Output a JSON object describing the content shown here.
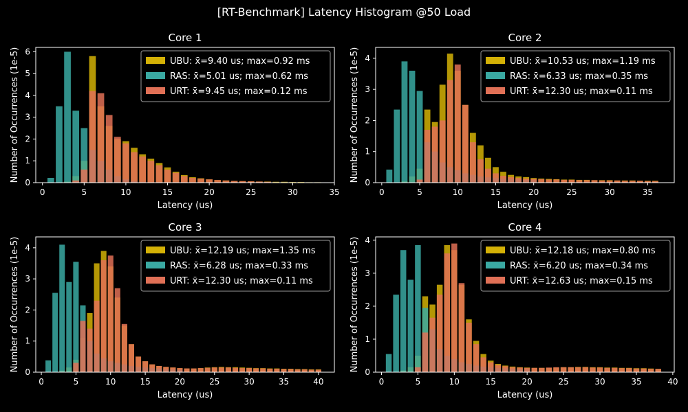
{
  "figure": {
    "title": "[RT-Benchmark] Latency Histogram @50 Load",
    "background": "#000000",
    "foreground": "#ffffff"
  },
  "chart_data": [
    {
      "type": "bar",
      "title": "Core 1",
      "xlabel": "Latency (us)",
      "ylabel": "Number of Occurrences (1e-5)",
      "xlim": [
        -0.8,
        35
      ],
      "ylim": [
        0,
        6.2
      ],
      "xticks": [
        0,
        5,
        10,
        15,
        20,
        25,
        30,
        35
      ],
      "yticks": [
        0,
        1,
        2,
        3,
        4,
        5,
        6
      ],
      "legend_position": "upper-right",
      "grid": false,
      "bar_width": 0.8,
      "series": [
        {
          "name": "UBU: x̄=9.40 us; max=0.92 ms",
          "color": "#d4b106",
          "x": [
            3,
            4,
            5,
            6,
            7,
            8,
            9,
            10,
            11,
            12,
            13,
            14,
            15,
            16,
            17,
            18,
            19,
            20,
            21,
            22,
            23,
            24,
            25,
            26,
            27,
            28,
            29,
            30,
            31,
            32,
            33
          ],
          "values": [
            0.05,
            0.3,
            1.0,
            5.8,
            3.5,
            2.6,
            2.0,
            1.9,
            1.6,
            1.3,
            1.1,
            0.9,
            0.7,
            0.5,
            0.35,
            0.25,
            0.2,
            0.15,
            0.12,
            0.1,
            0.08,
            0.07,
            0.06,
            0.05,
            0.05,
            0.04,
            0.04,
            0.03,
            0.03,
            0.02,
            0.02
          ]
        },
        {
          "name": "RAS: x̄=5.01 us; max=0.62 ms",
          "color": "#3aa9a2",
          "x": [
            1,
            2,
            3,
            4,
            5,
            6,
            7,
            8,
            9,
            10,
            11,
            12
          ],
          "values": [
            0.22,
            3.5,
            6.0,
            3.3,
            2.5,
            1.5,
            1.0,
            0.6,
            0.3,
            0.15,
            0.08,
            0.04
          ]
        },
        {
          "name": "URT: x̄=9.45 us; max=0.12 ms",
          "color": "#e07056",
          "x": [
            4,
            5,
            6,
            7,
            8,
            9,
            10,
            11,
            12,
            13,
            14,
            15,
            16,
            17,
            18,
            19,
            20,
            21,
            22,
            23,
            24,
            25,
            26,
            27
          ],
          "values": [
            0.1,
            0.6,
            4.2,
            4.1,
            3.1,
            2.1,
            1.8,
            1.4,
            1.2,
            1.0,
            0.8,
            0.6,
            0.45,
            0.3,
            0.22,
            0.18,
            0.15,
            0.12,
            0.1,
            0.08,
            0.07,
            0.06,
            0.05,
            0.04
          ]
        }
      ]
    },
    {
      "type": "bar",
      "title": "Core 2",
      "xlabel": "Latency (us)",
      "ylabel": "Number of Occurrences (1e-5)",
      "xlim": [
        -0.8,
        38.5
      ],
      "ylim": [
        0,
        4.35
      ],
      "xticks": [
        0,
        5,
        10,
        15,
        20,
        25,
        30,
        35
      ],
      "yticks": [
        0,
        1,
        2,
        3,
        4
      ],
      "legend_position": "upper-right",
      "grid": false,
      "bar_width": 0.8,
      "series": [
        {
          "name": "UBU: x̄=10.53 us; max=1.19 ms",
          "color": "#d4b106",
          "x": [
            3,
            4,
            5,
            6,
            7,
            8,
            9,
            10,
            11,
            12,
            13,
            14,
            15,
            16,
            17,
            18,
            19,
            20,
            21,
            22,
            23,
            24,
            25,
            26,
            27,
            28,
            29,
            30,
            31,
            32,
            33,
            34,
            35,
            36
          ],
          "values": [
            0.05,
            0.2,
            0.45,
            2.35,
            1.95,
            3.15,
            4.15,
            3.6,
            2.5,
            1.6,
            1.2,
            0.8,
            0.5,
            0.35,
            0.25,
            0.2,
            0.18,
            0.15,
            0.13,
            0.12,
            0.11,
            0.1,
            0.1,
            0.09,
            0.09,
            0.08,
            0.08,
            0.08,
            0.07,
            0.07,
            0.07,
            0.06,
            0.06,
            0.06
          ]
        },
        {
          "name": "RAS: x̄=6.33 us; max=0.35 ms",
          "color": "#3aa9a2",
          "x": [
            1,
            2,
            3,
            4,
            5,
            6,
            7,
            8,
            9,
            10,
            11,
            12,
            13,
            14,
            15,
            16,
            17,
            18,
            19,
            20
          ],
          "values": [
            0.42,
            2.35,
            3.9,
            3.6,
            2.95,
            1.3,
            1.0,
            0.65,
            0.5,
            0.4,
            0.3,
            0.25,
            0.2,
            0.17,
            0.15,
            0.13,
            0.12,
            0.1,
            0.09,
            0.08
          ]
        },
        {
          "name": "URT: x̄=12.30 us; max=0.11 ms",
          "color": "#e07056",
          "x": [
            5,
            6,
            7,
            8,
            9,
            10,
            11,
            12,
            13,
            14,
            15,
            16,
            17,
            18,
            19,
            20,
            21,
            22,
            23,
            24,
            25,
            26,
            27,
            28,
            29,
            30,
            31,
            32,
            33,
            34,
            35,
            36
          ],
          "values": [
            0.1,
            1.7,
            1.8,
            2.0,
            3.3,
            3.8,
            2.5,
            1.3,
            0.75,
            0.45,
            0.3,
            0.22,
            0.18,
            0.15,
            0.13,
            0.12,
            0.11,
            0.1,
            0.1,
            0.09,
            0.09,
            0.08,
            0.08,
            0.08,
            0.07,
            0.07,
            0.07,
            0.06,
            0.06,
            0.06,
            0.05,
            0.05
          ]
        }
      ]
    },
    {
      "type": "bar",
      "title": "Core 3",
      "xlabel": "Latency (us)",
      "ylabel": "Number of Occurrences (1e-5)",
      "xlim": [
        -0.8,
        42.3
      ],
      "ylim": [
        0,
        4.35
      ],
      "xticks": [
        0,
        5,
        10,
        15,
        20,
        25,
        30,
        35,
        40
      ],
      "yticks": [
        0,
        1,
        2,
        3,
        4
      ],
      "legend_position": "upper-right",
      "grid": false,
      "bar_width": 0.8,
      "series": [
        {
          "name": "UBU: x̄=12.19 us; max=1.35 ms",
          "color": "#d4b106",
          "x": [
            3,
            4,
            5,
            6,
            7,
            8,
            9,
            10,
            11,
            12,
            13,
            14,
            15,
            16,
            17,
            18,
            19,
            20,
            21,
            22,
            23,
            24,
            25,
            26,
            27,
            28,
            29,
            30,
            31,
            32,
            33,
            34,
            35,
            36,
            37,
            38,
            39,
            40
          ],
          "values": [
            0.05,
            0.15,
            0.4,
            1.1,
            1.9,
            3.5,
            3.9,
            3.4,
            2.4,
            1.5,
            0.9,
            0.5,
            0.35,
            0.25,
            0.2,
            0.17,
            0.15,
            0.13,
            0.12,
            0.12,
            0.13,
            0.15,
            0.16,
            0.17,
            0.16,
            0.16,
            0.15,
            0.14,
            0.13,
            0.13,
            0.12,
            0.12,
            0.11,
            0.11,
            0.1,
            0.1,
            0.09,
            0.09
          ]
        },
        {
          "name": "RAS: x̄=6.28 us; max=0.33 ms",
          "color": "#3aa9a2",
          "x": [
            1,
            2,
            3,
            4,
            5,
            6,
            7,
            8,
            9,
            10,
            11,
            12,
            13,
            14,
            15,
            16,
            17,
            18,
            19,
            20
          ],
          "values": [
            0.38,
            2.55,
            4.1,
            2.9,
            3.55,
            2.15,
            1.0,
            0.6,
            0.45,
            0.35,
            0.3,
            0.25,
            0.2,
            0.17,
            0.15,
            0.13,
            0.12,
            0.1,
            0.09,
            0.08
          ]
        },
        {
          "name": "URT: x̄=12.30 us; max=0.11 ms",
          "color": "#e07056",
          "x": [
            5,
            6,
            7,
            8,
            9,
            10,
            11,
            12,
            13,
            14,
            15,
            16,
            17,
            18,
            19,
            20,
            21,
            22,
            23,
            24,
            25,
            26,
            27,
            28,
            29,
            30,
            31,
            32,
            33,
            34,
            35,
            36,
            37,
            38,
            39,
            40
          ],
          "values": [
            0.3,
            1.65,
            1.4,
            2.3,
            3.6,
            3.75,
            2.7,
            1.55,
            0.9,
            0.5,
            0.35,
            0.25,
            0.2,
            0.17,
            0.15,
            0.13,
            0.12,
            0.12,
            0.13,
            0.14,
            0.15,
            0.15,
            0.15,
            0.14,
            0.13,
            0.13,
            0.12,
            0.12,
            0.11,
            0.11,
            0.1,
            0.1,
            0.09,
            0.09,
            0.08,
            0.08
          ]
        }
      ]
    },
    {
      "type": "bar",
      "title": "Core 4",
      "xlabel": "Latency (us)",
      "ylabel": "Number of Occurrences (1e-5)",
      "xlim": [
        -0.8,
        40.2
      ],
      "ylim": [
        0,
        4.1
      ],
      "xticks": [
        0,
        5,
        10,
        15,
        20,
        25,
        30,
        35,
        40
      ],
      "yticks": [
        0,
        1,
        2,
        3,
        4
      ],
      "legend_position": "upper-right",
      "grid": false,
      "bar_width": 0.8,
      "series": [
        {
          "name": "UBU: x̄=12.18 us; max=0.80 ms",
          "color": "#d4b106",
          "x": [
            3,
            4,
            5,
            6,
            7,
            8,
            9,
            10,
            11,
            12,
            13,
            14,
            15,
            16,
            17,
            18,
            19,
            20,
            21,
            22,
            23,
            24,
            25,
            26,
            27,
            28,
            29,
            30,
            31,
            32,
            33,
            34,
            35,
            36,
            37,
            38
          ],
          "values": [
            0.05,
            0.15,
            0.5,
            2.3,
            2.05,
            2.65,
            3.85,
            3.7,
            2.65,
            1.6,
            0.95,
            0.55,
            0.35,
            0.25,
            0.2,
            0.17,
            0.15,
            0.14,
            0.13,
            0.13,
            0.13,
            0.14,
            0.15,
            0.15,
            0.16,
            0.16,
            0.15,
            0.15,
            0.14,
            0.14,
            0.13,
            0.13,
            0.12,
            0.12,
            0.11,
            0.1
          ]
        },
        {
          "name": "RAS: x̄=6.20 us; max=0.34 ms",
          "color": "#3aa9a2",
          "x": [
            1,
            2,
            3,
            4,
            5,
            6,
            7,
            8,
            9,
            10,
            11,
            12,
            13,
            14,
            15,
            16,
            17,
            18,
            19,
            20
          ],
          "values": [
            0.55,
            2.35,
            3.7,
            2.8,
            3.85,
            1.95,
            1.3,
            0.7,
            0.5,
            0.4,
            0.3,
            0.25,
            0.2,
            0.17,
            0.15,
            0.13,
            0.12,
            0.1,
            0.09,
            0.08
          ]
        },
        {
          "name": "URT: x̄=12.63 us; max=0.15 ms",
          "color": "#e07056",
          "x": [
            5,
            6,
            7,
            8,
            9,
            10,
            11,
            12,
            13,
            14,
            15,
            16,
            17,
            18,
            19,
            20,
            21,
            22,
            23,
            24,
            25,
            26,
            27,
            28,
            29,
            30,
            31,
            32,
            33,
            34,
            35,
            36,
            37,
            38
          ],
          "values": [
            0.15,
            1.2,
            1.65,
            2.35,
            3.6,
            3.9,
            2.7,
            1.5,
            0.85,
            0.45,
            0.3,
            0.22,
            0.18,
            0.15,
            0.14,
            0.13,
            0.13,
            0.13,
            0.14,
            0.15,
            0.15,
            0.15,
            0.15,
            0.15,
            0.14,
            0.14,
            0.13,
            0.13,
            0.12,
            0.12,
            0.11,
            0.11,
            0.1,
            0.1
          ]
        }
      ]
    }
  ]
}
